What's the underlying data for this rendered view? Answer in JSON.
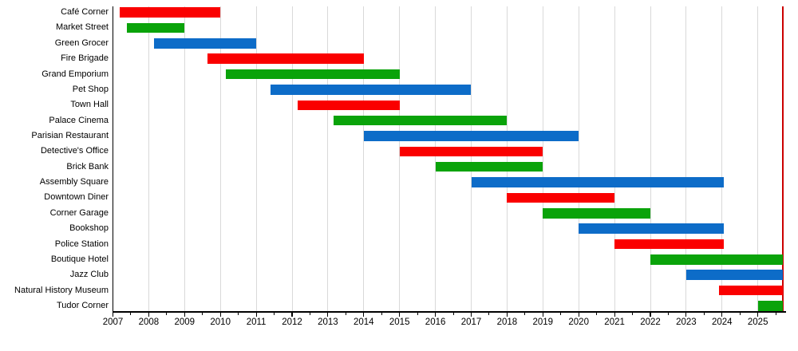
{
  "chart_data": {
    "type": "gantt",
    "title": "",
    "description": "Timeline chart of building sets availability from release to retirement; ongoing bars run to the current-date marker line",
    "x_axis": {
      "min": 2007,
      "max": 2025.75,
      "major_ticks": [
        2007,
        2008,
        2009,
        2010,
        2011,
        2012,
        2013,
        2014,
        2015,
        2016,
        2017,
        2018,
        2019,
        2020,
        2021,
        2022,
        2023,
        2024,
        2025
      ],
      "tick_labels": [
        "2007",
        "2008",
        "2009",
        "2010",
        "2011",
        "2012",
        "2013",
        "2014",
        "2015",
        "2016",
        "2017",
        "2018",
        "2019",
        "2020",
        "2021",
        "2022",
        "2023",
        "2024",
        "2025"
      ],
      "minor_tick_interval": 0.5,
      "grid": true
    },
    "today_marker": 2025.7,
    "legend": null,
    "colors": {
      "red": "#fa0000",
      "green": "#0aa30a",
      "blue": "#0d6cc8",
      "grid": "#d9d9d9",
      "axis": "#000000",
      "today_line": "#cc0000",
      "text": "#000000"
    },
    "rows": [
      {
        "label": "Café Corner",
        "start": 2007.2,
        "end": 2010.0,
        "color": "red"
      },
      {
        "label": "Market Street",
        "start": 2007.4,
        "end": 2009.0,
        "color": "green"
      },
      {
        "label": "Green Grocer",
        "start": 2008.15,
        "end": 2011.0,
        "color": "blue"
      },
      {
        "label": "Fire Brigade",
        "start": 2009.65,
        "end": 2014.0,
        "color": "red"
      },
      {
        "label": "Grand Emporium",
        "start": 2010.15,
        "end": 2015.0,
        "color": "green"
      },
      {
        "label": "Pet Shop",
        "start": 2011.4,
        "end": 2017.0,
        "color": "blue"
      },
      {
        "label": "Town Hall",
        "start": 2012.15,
        "end": 2015.0,
        "color": "red"
      },
      {
        "label": "Palace Cinema",
        "start": 2013.15,
        "end": 2018.0,
        "color": "green"
      },
      {
        "label": "Parisian Restaurant",
        "start": 2014.0,
        "end": 2020.0,
        "color": "blue"
      },
      {
        "label": "Detective's Office",
        "start": 2015.0,
        "end": 2019.0,
        "color": "red"
      },
      {
        "label": "Brick Bank",
        "start": 2016.0,
        "end": 2019.0,
        "color": "green"
      },
      {
        "label": "Assembly Square",
        "start": 2017.0,
        "end": 2024.05,
        "color": "blue"
      },
      {
        "label": "Downtown Diner",
        "start": 2018.0,
        "end": 2021.0,
        "color": "red"
      },
      {
        "label": "Corner Garage",
        "start": 2019.0,
        "end": 2022.0,
        "color": "green"
      },
      {
        "label": "Bookshop",
        "start": 2020.0,
        "end": 2024.05,
        "color": "blue"
      },
      {
        "label": "Police Station",
        "start": 2021.0,
        "end": 2024.05,
        "color": "red"
      },
      {
        "label": "Boutique Hotel",
        "start": 2022.0,
        "end": 2025.7,
        "color": "green"
      },
      {
        "label": "Jazz Club",
        "start": 2023.0,
        "end": 2025.7,
        "color": "blue"
      },
      {
        "label": "Natural History Museum",
        "start": 2023.92,
        "end": 2025.7,
        "color": "red"
      },
      {
        "label": "Tudor Corner",
        "start": 2025.0,
        "end": 2025.7,
        "color": "green"
      }
    ]
  }
}
